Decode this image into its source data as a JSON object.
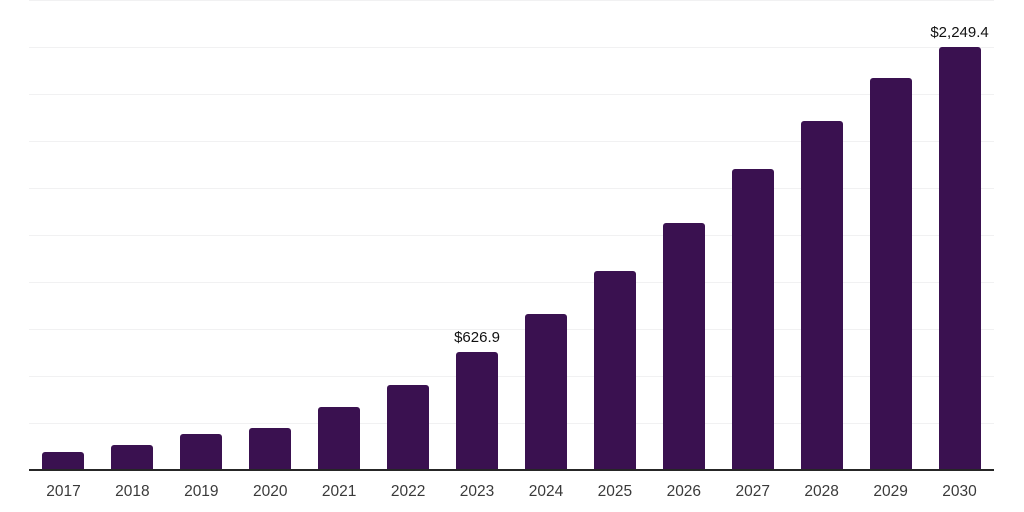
{
  "chart_data": {
    "type": "bar",
    "title": "",
    "xlabel": "",
    "ylabel": "",
    "categories": [
      "2017",
      "2018",
      "2019",
      "2020",
      "2021",
      "2022",
      "2023",
      "2024",
      "2025",
      "2026",
      "2027",
      "2028",
      "2029",
      "2030"
    ],
    "values": [
      95,
      133,
      189,
      222,
      335,
      452,
      626.9,
      830,
      1058,
      1314,
      1600,
      1856,
      2085,
      2249.4
    ],
    "data_labels": [
      "",
      "",
      "",
      "",
      "",
      "",
      "$626.9",
      "",
      "",
      "",
      "",
      "",
      "",
      "$2,249.4"
    ],
    "ylim": [
      0,
      2500
    ],
    "gridline_interval": 250,
    "grid": "horizontal",
    "legend": "none",
    "colors": {
      "bar": "#3A1150",
      "axis": "#262626",
      "gridline": "#F1F1F2",
      "tick_label": "#3A3A3A",
      "data_label": "#111111",
      "background": "#FFFFFF"
    }
  }
}
